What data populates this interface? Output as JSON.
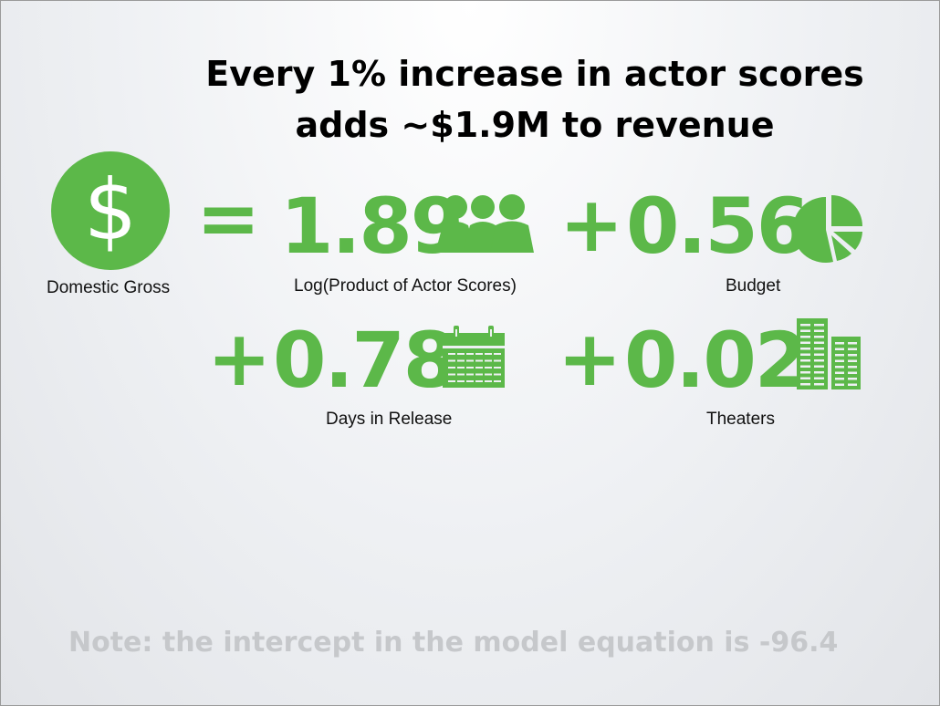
{
  "slide": {
    "title_line1": "Every 1% increase in actor scores",
    "title_line2": "adds ~$1.9M to revenue",
    "accent_color": "#5cb849",
    "equation": {
      "lhs_symbol": "$",
      "lhs_label": "Domestic Gross",
      "equals": "=",
      "terms": [
        {
          "prefix": "",
          "coefficient": "1.89",
          "icon": "people-icon",
          "label": "Log(Product of Actor Scores)"
        },
        {
          "prefix": "+",
          "coefficient": "0.56",
          "icon": "pie-chart-icon",
          "label": "Budget"
        },
        {
          "prefix": "+",
          "coefficient": "0.78",
          "icon": "calendar-icon",
          "label": "Days in Release"
        },
        {
          "prefix": "+",
          "coefficient": "0.02",
          "icon": "buildings-icon",
          "label": "Theaters"
        }
      ]
    },
    "note": "Note: the intercept in the model equation is -96.4"
  }
}
